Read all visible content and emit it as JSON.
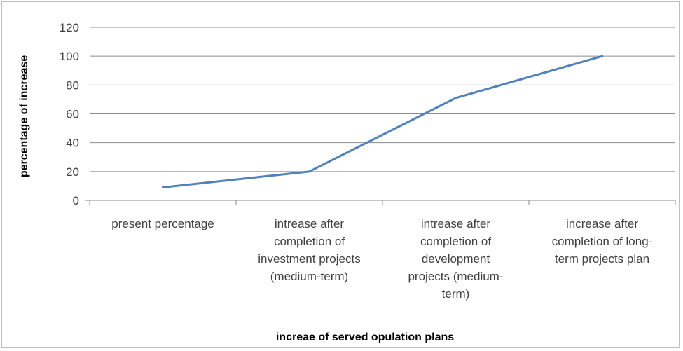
{
  "chart_data": {
    "type": "line",
    "categories": [
      [
        "present percentage"
      ],
      [
        "intrease after",
        "completion of",
        "investment projects",
        "(medium-term)"
      ],
      [
        "intrease after",
        "completion of",
        "development",
        "projects (medium-",
        "term)"
      ],
      [
        "increase after",
        "completion of long-",
        "term projects plan"
      ]
    ],
    "series": [
      {
        "values": [
          9,
          20,
          71,
          100
        ]
      }
    ],
    "xlabel": "increae of served opulation plans",
    "ylabel": "percentage of increase",
    "ylim": [
      0,
      120
    ],
    "yticks": [
      "0",
      "20",
      "40",
      "60",
      "80",
      "100",
      "120"
    ],
    "grid": true,
    "legend": "none",
    "line_color": "#4f81bd"
  }
}
